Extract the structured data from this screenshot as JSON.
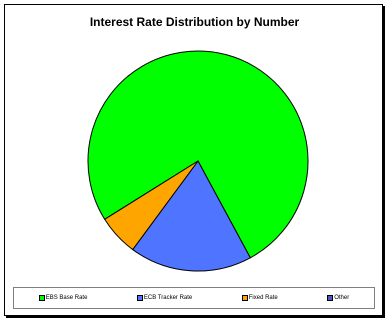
{
  "chart_data": {
    "type": "pie",
    "title": "Interest Rate Distribution by Number",
    "legend_position": "bottom",
    "slices": [
      {
        "label": "EBS Base Rate",
        "value": 76,
        "color": "#00ff00"
      },
      {
        "label": "ECB Tracker Rate",
        "value": 18,
        "color": "#4f74ff"
      },
      {
        "label": "Fixed Rate",
        "value": 6,
        "color": "#ffa500"
      },
      {
        "label": "Other",
        "value": 0,
        "color": "#4d58b8"
      }
    ]
  }
}
